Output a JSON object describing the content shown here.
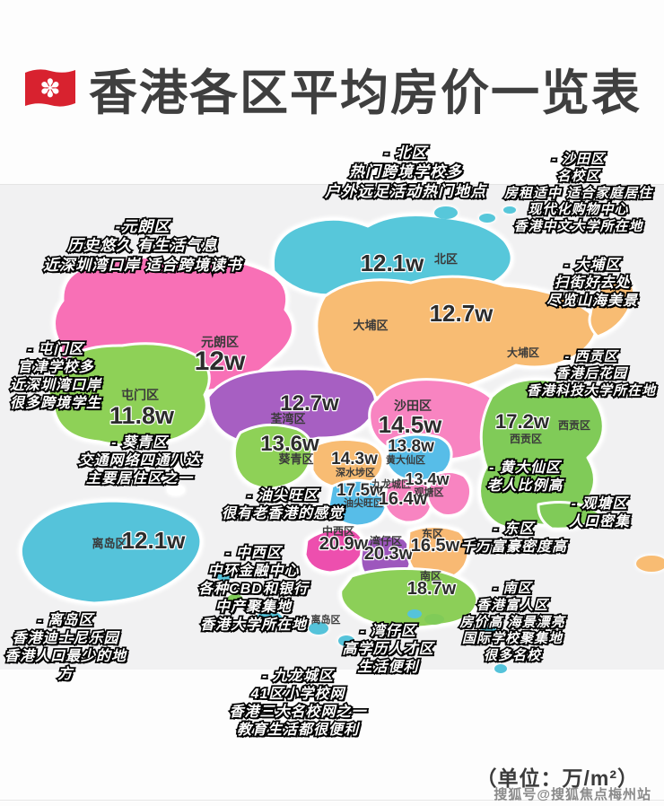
{
  "title": {
    "text": "香港各区平均房价一览表"
  },
  "icons": {
    "title_flag": "hong-kong-flag"
  },
  "unit_note": "（单位：万/m²）",
  "watermark": "搜狐号@搜狐焦点梅州站",
  "map": {
    "districts": [
      {
        "id": "yuen-long",
        "name": "元朗区",
        "price": "12w",
        "color": "#f870b6"
      },
      {
        "id": "north",
        "name": "北区",
        "price": "12.1w",
        "color": "#57c7da"
      },
      {
        "id": "tai-po",
        "name": "大埔区",
        "price": "12.7w",
        "color": "#f8bc73"
      },
      {
        "id": "tuen-mun",
        "name": "屯门区",
        "price": "11.8w",
        "color": "#8ed157"
      },
      {
        "id": "tsuen-wan",
        "name": "荃湾区",
        "price": "12.7w",
        "color": "#a75fc2"
      },
      {
        "id": "sha-tin",
        "name": "沙田区",
        "price": "14.5w",
        "color": "#f884c1"
      },
      {
        "id": "kwai-tsing",
        "name": "葵青区",
        "price": "13.6w",
        "color": "#8ed157"
      },
      {
        "id": "sham-shui-po",
        "name": "深水埗区",
        "price": "14.3w",
        "color": "#f8bc73"
      },
      {
        "id": "wong-tai-sin",
        "name": "黄大仙区",
        "price": "13.8w",
        "color": "#57bde8"
      },
      {
        "id": "yau-tsim-mong",
        "name": "油尖旺区",
        "price": "17.5w",
        "color": "#57bde8"
      },
      {
        "id": "kowloon-city",
        "name": "九龙城区",
        "price": "16.4w",
        "color": "#f884c1"
      },
      {
        "id": "kwun-tong",
        "name": "观塘区",
        "price": "13.4w",
        "color": "#f884c1"
      },
      {
        "id": "sai-kung",
        "name": "西贡区",
        "price": "17.2w",
        "color": "#80cb58"
      },
      {
        "id": "central-western",
        "name": "中西区",
        "price": "20.9w",
        "color": "#ed4fae"
      },
      {
        "id": "wan-chai",
        "name": "湾仔区",
        "price": "20.3w",
        "color": "#9d57bd"
      },
      {
        "id": "eastern",
        "name": "东区",
        "price": "16.5w",
        "color": "#f8b973"
      },
      {
        "id": "southern",
        "name": "南区",
        "price": "18.7w",
        "color": "#8ccf58"
      },
      {
        "id": "islands",
        "name": "离岛区",
        "price": "12.1w",
        "color": "#55c3da"
      }
    ]
  },
  "annotations": [
    {
      "district": "北区",
      "lines": [
        "- 北区",
        "热门跨境学校多",
        "户外远足活动热门地点"
      ]
    },
    {
      "district": "沙田区",
      "lines": [
        "- 沙田区",
        "名校区",
        "房租适中 适合家庭居住",
        "现代化购物中心",
        "香港中文大学所在地"
      ]
    },
    {
      "district": "元朗区",
      "lines": [
        "-元朗区",
        "历史悠久 有生活气息",
        "近深圳湾口岸 适合跨境读书"
      ]
    },
    {
      "district": "大埔区",
      "lines": [
        "- 大埔区",
        "扫街好去处",
        "尽览山海美景"
      ]
    },
    {
      "district": "西贡区",
      "lines": [
        "- 西贡区",
        "香港后花园",
        "香港科技大学所在地"
      ]
    },
    {
      "district": "屯门区",
      "lines": [
        "- 屯门区",
        "官津学校多",
        "近深圳湾口岸",
        "很多跨境学生"
      ]
    },
    {
      "district": "葵青区",
      "lines": [
        "- 葵青区",
        "交通网络四通八达",
        "主要居住区之一"
      ]
    },
    {
      "district": "黄大仙区",
      "lines": [
        "- 黄大仙区",
        "老人比例高"
      ]
    },
    {
      "district": "观塘区",
      "lines": [
        "- 观塘区",
        "人口密集"
      ]
    },
    {
      "district": "东区",
      "lines": [
        "- 东区",
        "千万富豪密度高"
      ]
    },
    {
      "district": "油尖旺区",
      "lines": [
        "- 油尖旺区",
        "很有老香港的感觉"
      ]
    },
    {
      "district": "中西区",
      "lines": [
        "- 中西区",
        "中环金融中心",
        "各种CBD和银行",
        "中产聚集地",
        "香港大学所在地"
      ]
    },
    {
      "district": "离岛区",
      "lines": [
        "- 离岛区",
        "香港迪士尼乐园",
        "香港人口最少的地方"
      ]
    },
    {
      "district": "湾仔区",
      "lines": [
        "- 湾仔区",
        "高学历人才区",
        "生活便利"
      ]
    },
    {
      "district": "九龙城区",
      "lines": [
        "- 九龙城区",
        "41区小学校网",
        "香港三大名校网之一",
        "教育生活都很便利"
      ]
    },
    {
      "district": "南区",
      "lines": [
        "- 南区",
        "香港富人区",
        "房价高 海景漂亮",
        "国际学校聚集地",
        "很多名校"
      ]
    }
  ]
}
